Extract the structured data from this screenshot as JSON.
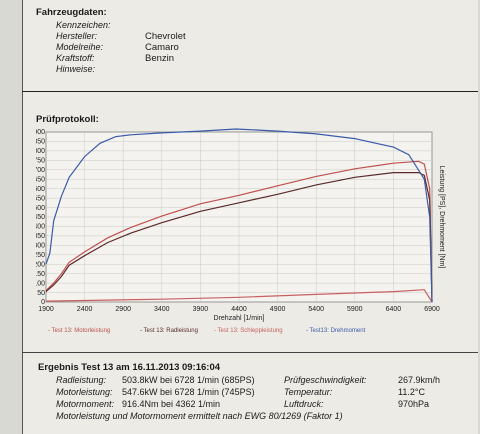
{
  "vehicle": {
    "section_title": "Fahrzeugdaten:",
    "fields": [
      {
        "label": "Kennzeichen:",
        "value": ""
      },
      {
        "label": "Hersteller:",
        "value": "Chevrolet"
      },
      {
        "label": "Modelreihe:",
        "value": "Camaro"
      },
      {
        "label": "Kraftstoff:",
        "value": "Benzin"
      },
      {
        "label": "Hinweise:",
        "value": ""
      }
    ]
  },
  "protocol": {
    "section_title": "Prüfprotokoll:",
    "right_axis_label": "Leistung [PS], Drehmoment [Nm]"
  },
  "chart_data": {
    "type": "line",
    "title": "",
    "xlabel": "Drehzahl [1/min]",
    "ylabel": "Leistung [PS], Drehmoment [Nm]",
    "xlim": [
      1900,
      6900
    ],
    "ylim": [
      0,
      900
    ],
    "x_ticks": [
      "1900",
      "2400",
      "2900",
      "3400",
      "3900",
      "4400",
      "4900",
      "5400",
      "5900",
      "6400",
      "6900"
    ],
    "y_ticks": [
      "900",
      "850",
      "800",
      "750",
      "700",
      "650",
      "600",
      "550",
      "500",
      "450",
      "400",
      "350",
      "300",
      "250",
      "200",
      "150",
      "100",
      "50",
      "0"
    ],
    "grid": true,
    "legend_position": "bottom",
    "series": [
      {
        "name": "Test 13: Motorleistung",
        "color": "#c0504d",
        "x": [
          1900,
          2000,
          2100,
          2200,
          2400,
          2700,
          3000,
          3400,
          3900,
          4400,
          4900,
          5400,
          5900,
          6400,
          6728,
          6800,
          6870,
          6900
        ],
        "y": [
          60,
          100,
          150,
          210,
          265,
          340,
          395,
          455,
          520,
          565,
          615,
          665,
          705,
          735,
          745,
          730,
          600,
          0
        ]
      },
      {
        "name": "Test 13: Radleistung",
        "color": "#5b2a2a",
        "x": [
          1900,
          2000,
          2100,
          2200,
          2400,
          2700,
          3000,
          3400,
          3900,
          4400,
          4900,
          5400,
          5900,
          6400,
          6728,
          6800,
          6870,
          6900
        ],
        "y": [
          55,
          90,
          135,
          195,
          245,
          315,
          365,
          420,
          480,
          525,
          570,
          620,
          660,
          685,
          685,
          670,
          540,
          0
        ]
      },
      {
        "name": "Test 13: Schleppleistung",
        "color": "#c86060",
        "x": [
          1900,
          2400,
          3400,
          4400,
          5400,
          6400,
          6800,
          6900
        ],
        "y": [
          5,
          8,
          15,
          25,
          40,
          55,
          65,
          0
        ]
      },
      {
        "name": "Test13: Drehmoment",
        "color": "#3a5ba8",
        "x": [
          1900,
          1950,
          2000,
          2100,
          2200,
          2400,
          2600,
          2800,
          3000,
          3400,
          3900,
          4362,
          4900,
          5400,
          5900,
          6400,
          6600,
          6800,
          6870,
          6900
        ],
        "y": [
          200,
          260,
          430,
          560,
          660,
          770,
          840,
          875,
          885,
          895,
          905,
          916,
          905,
          890,
          865,
          820,
          780,
          650,
          450,
          0
        ]
      }
    ]
  },
  "result": {
    "title": "Ergebnis Test 13 am 16.11.2013 09:16:04",
    "left": [
      {
        "label": "Radleistung:",
        "value": "503.8kW  bei 6728 1/min (685PS)"
      },
      {
        "label": "Motorleistung:",
        "value": "547.6kW  bei 6728 1/min (745PS)"
      },
      {
        "label": "Motormoment:",
        "value": "916.4Nm  bei 4362 1/min"
      }
    ],
    "right": [
      {
        "label": "Prüfgeschwindigkeit:",
        "value": "267.9km/h"
      },
      {
        "label": "Temperatur:",
        "value": "11.2°C"
      },
      {
        "label": "Luftdruck:",
        "value": "970hPa"
      }
    ],
    "footer": "Motorleistung und Motormoment ermittelt nach EWG 80/1269 (Faktor 1)"
  }
}
